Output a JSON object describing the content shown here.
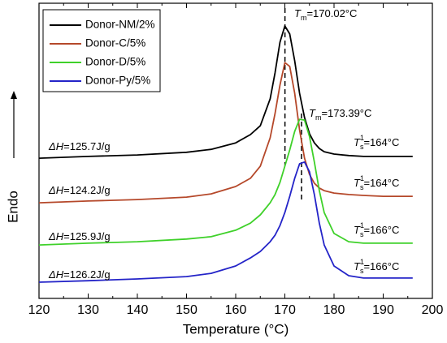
{
  "chart_data": {
    "type": "line",
    "x_label": "Temperature (°C)",
    "y_label": "Endo",
    "xlim": [
      120,
      200
    ],
    "xticks": [
      120,
      130,
      140,
      150,
      160,
      170,
      180,
      190,
      200
    ],
    "ylim": [
      0,
      100
    ],
    "legend": "upper left",
    "x": [
      120,
      130,
      140,
      150,
      155,
      160,
      163,
      165,
      167,
      168,
      169,
      170,
      171,
      172,
      173,
      174,
      175,
      176,
      177,
      178,
      180,
      183,
      186,
      190,
      196
    ],
    "series": [
      {
        "name": "Donor-NM/2%",
        "color": "#000000",
        "values": [
          47.5,
          48.1,
          48.6,
          49.5,
          50.5,
          52.7,
          55.5,
          58.5,
          67.6,
          76.4,
          86.8,
          92.3,
          89.6,
          80.5,
          69.5,
          61.3,
          55.8,
          52.7,
          50.8,
          49.7,
          48.9,
          48.4,
          48.1,
          48.1,
          48.1
        ]
      },
      {
        "name": "Donor-C/5%",
        "color": "#b5482a",
        "values": [
          32.4,
          33.0,
          33.5,
          34.3,
          35.4,
          37.9,
          40.7,
          44.8,
          54.4,
          62.6,
          72.3,
          79.9,
          78.6,
          69.5,
          57.1,
          47.5,
          42.0,
          39.0,
          37.4,
          36.5,
          35.7,
          35.2,
          34.9,
          34.6,
          34.6
        ]
      },
      {
        "name": "Donor-D/5%",
        "color": "#3fd12a",
        "values": [
          18.1,
          18.7,
          19.2,
          20.1,
          20.9,
          23.1,
          25.5,
          28.3,
          32.4,
          35.2,
          39.3,
          44.8,
          50.3,
          56.6,
          60.7,
          60.4,
          54.9,
          46.2,
          36.5,
          29.1,
          22.0,
          19.2,
          18.7,
          18.7,
          18.7
        ]
      },
      {
        "name": "Donor-Py/5%",
        "color": "#2424c8",
        "values": [
          5.5,
          6.0,
          6.6,
          7.4,
          8.5,
          11.0,
          13.7,
          15.9,
          19.2,
          21.4,
          24.7,
          29.1,
          34.6,
          40.7,
          45.6,
          46.2,
          42.9,
          35.2,
          25.5,
          18.1,
          11.0,
          7.7,
          6.9,
          6.9,
          6.9
        ]
      }
    ],
    "tm_markers": [
      {
        "x": 170.02,
        "symbol": "T",
        "sub": "m",
        "text": "=170.02°C"
      },
      {
        "x": 173.39,
        "symbol": "T",
        "sub": "m",
        "text": "=173.39°C"
      }
    ],
    "onset_labels": [
      {
        "symbol": "T",
        "sup": "1",
        "sub": "s",
        "text": "=164°C"
      },
      {
        "symbol": "T",
        "sup": "1",
        "sub": "s",
        "text": "=164°C"
      },
      {
        "symbol": "T",
        "sup": "1",
        "sub": "s",
        "text": "=166°C"
      },
      {
        "symbol": "T",
        "sup": "1",
        "sub": "s",
        "text": "=166°C"
      }
    ],
    "enthalpy_labels": [
      {
        "symbol": "ΔH",
        "text": "=125.7J/g"
      },
      {
        "symbol": "ΔH",
        "text": "=124.2J/g"
      },
      {
        "symbol": "ΔH",
        "text": "=125.9J/g"
      },
      {
        "symbol": "ΔH",
        "text": "=126.2J/g"
      }
    ]
  }
}
